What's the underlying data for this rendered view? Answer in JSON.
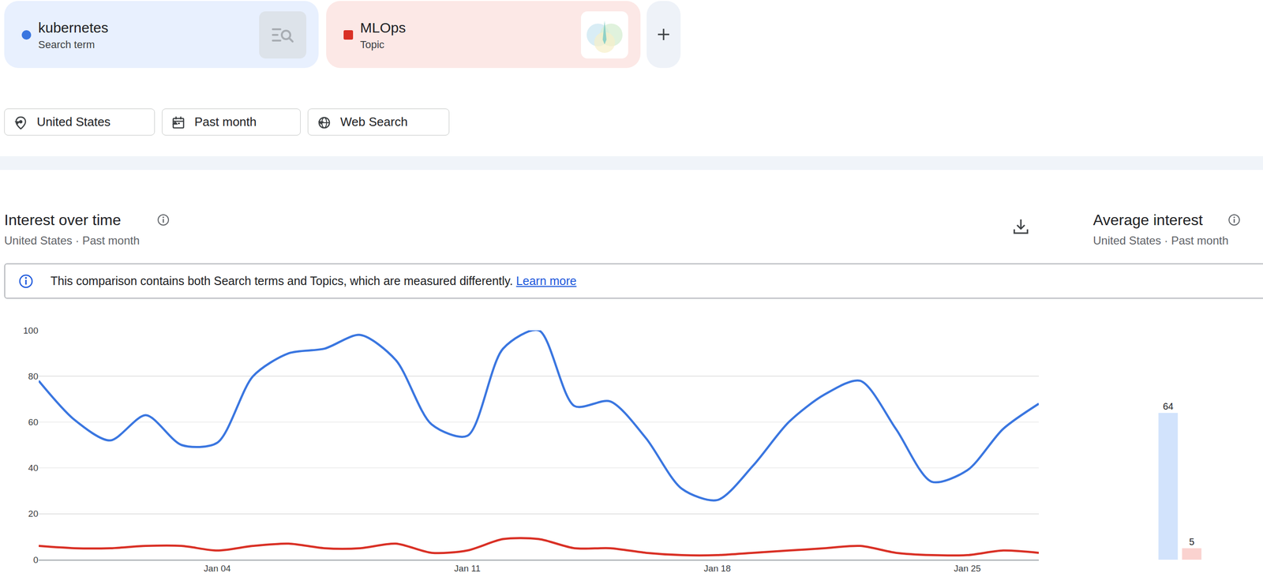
{
  "term_kinds": [
    "Search term",
    "Topic"
  ],
  "filters": [
    "United States",
    "Past month",
    "Web Search"
  ],
  "notice": {
    "text": "This comparison contains both Search terms and Topics, which are measured differently.",
    "link": "Learn more"
  },
  "chart_data": [
    {
      "type": "line",
      "title": "Interest over time",
      "subtitle": "United States · Past month",
      "categories": [
        null,
        null,
        null,
        null,
        null,
        "Jan 04",
        null,
        null,
        null,
        null,
        null,
        null,
        "Jan 11",
        null,
        null,
        null,
        null,
        null,
        null,
        "Jan 18",
        null,
        null,
        null,
        null,
        null,
        null,
        "Jan 25",
        null,
        null
      ],
      "series": [
        {
          "name": "kubernetes",
          "color": "#3a76e0",
          "values": [
            78,
            61,
            52,
            63,
            50,
            51,
            80,
            90,
            92,
            98,
            87,
            59,
            54,
            92,
            100,
            67,
            69,
            53,
            31,
            26,
            41,
            60,
            72,
            78,
            57,
            34,
            39,
            57,
            68
          ]
        },
        {
          "name": "MLOps",
          "color": "#d93025",
          "values": [
            6,
            5,
            5,
            6,
            6,
            4,
            6,
            7,
            5,
            5,
            7,
            3,
            4,
            9,
            9,
            5,
            5,
            3,
            2,
            2,
            3,
            4,
            5,
            6,
            3,
            2,
            2,
            4,
            3
          ]
        }
      ],
      "ylim": [
        0,
        100
      ],
      "yticks": [
        0,
        20,
        40,
        60,
        80,
        100
      ],
      "grid": true,
      "line_style": "solid"
    },
    {
      "type": "bar",
      "title": "Average interest",
      "subtitle": "United States · Past month",
      "categories": [
        null,
        null
      ],
      "values": [
        64,
        5
      ],
      "colors": [
        "#d2e3fc",
        "#fad2cf"
      ],
      "ylim": [
        0,
        100
      ],
      "data_labels": true,
      "tick_labels": false
    }
  ]
}
